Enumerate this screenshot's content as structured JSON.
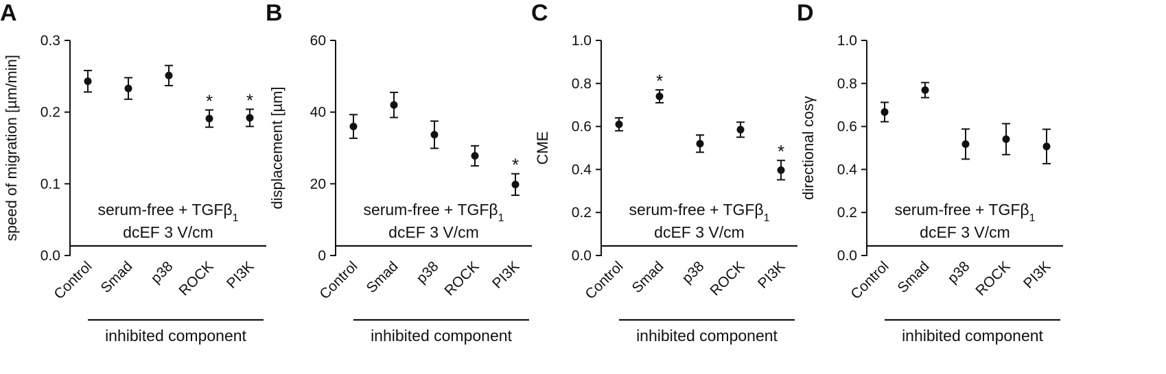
{
  "chart_data": [
    {
      "panel": "A",
      "type": "scatter",
      "ylabel": "speed of migration [µm/min]",
      "ylim": [
        0,
        0.3
      ],
      "yticks": [
        "0.0",
        "0.1",
        "0.2",
        "0.3"
      ],
      "categories": [
        "Control",
        "Smad",
        "p38",
        "ROCK",
        "PI3K"
      ],
      "values": [
        0.243,
        0.233,
        0.251,
        0.191,
        0.192
      ],
      "errors": [
        0.015,
        0.015,
        0.014,
        0.012,
        0.012
      ],
      "significance": [
        "",
        "",
        "",
        "*",
        "*"
      ],
      "condition_lines": [
        "serum-free + TGFβ",
        "dcEF 3 V/cm"
      ],
      "condition_subscript": "1",
      "group_label": "inhibited component"
    },
    {
      "panel": "B",
      "type": "scatter",
      "ylabel": "displacement [µm]",
      "ylim": [
        0,
        60
      ],
      "yticks": [
        "0",
        "20",
        "40",
        "60"
      ],
      "categories": [
        "Control",
        "Smad",
        "p38",
        "ROCK",
        "PI3K"
      ],
      "values": [
        36,
        42,
        33.7,
        27.8,
        19.8
      ],
      "errors": [
        3.3,
        3.5,
        3.8,
        2.8,
        3.0
      ],
      "significance": [
        "",
        "",
        "",
        "",
        "*"
      ],
      "condition_lines": [
        "serum-free + TGFβ",
        "dcEF 3 V/cm"
      ],
      "condition_subscript": "1",
      "group_label": "inhibited component"
    },
    {
      "panel": "C",
      "type": "scatter",
      "ylabel": "CME",
      "ylim": [
        0,
        1.0
      ],
      "yticks": [
        "0.0",
        "0.2",
        "0.4",
        "0.6",
        "0.8",
        "1.0"
      ],
      "categories": [
        "Control",
        "Smad",
        "p38",
        "ROCK",
        "PI3K"
      ],
      "values": [
        0.61,
        0.74,
        0.52,
        0.585,
        0.397
      ],
      "errors": [
        0.03,
        0.03,
        0.04,
        0.035,
        0.045
      ],
      "significance": [
        "",
        "*",
        "",
        "",
        "*"
      ],
      "condition_lines": [
        "serum-free + TGFβ",
        "dcEF 3 V/cm"
      ],
      "condition_subscript": "1",
      "group_label": "inhibited component"
    },
    {
      "panel": "D",
      "type": "scatter",
      "ylabel": "directional cosγ",
      "ylim": [
        0,
        1.0
      ],
      "yticks": [
        "0.0",
        "0.2",
        "0.4",
        "0.6",
        "0.8",
        "1.0"
      ],
      "categories": [
        "Control",
        "Smad",
        "p38",
        "ROCK",
        "PI3K"
      ],
      "values": [
        0.667,
        0.769,
        0.518,
        0.541,
        0.507
      ],
      "errors": [
        0.045,
        0.035,
        0.07,
        0.072,
        0.08
      ],
      "significance": [
        "",
        "",
        "",
        "",
        ""
      ],
      "condition_lines": [
        "serum-free + TGFβ",
        "dcEF 3 V/cm"
      ],
      "condition_subscript": "1",
      "group_label": "inhibited component"
    }
  ]
}
